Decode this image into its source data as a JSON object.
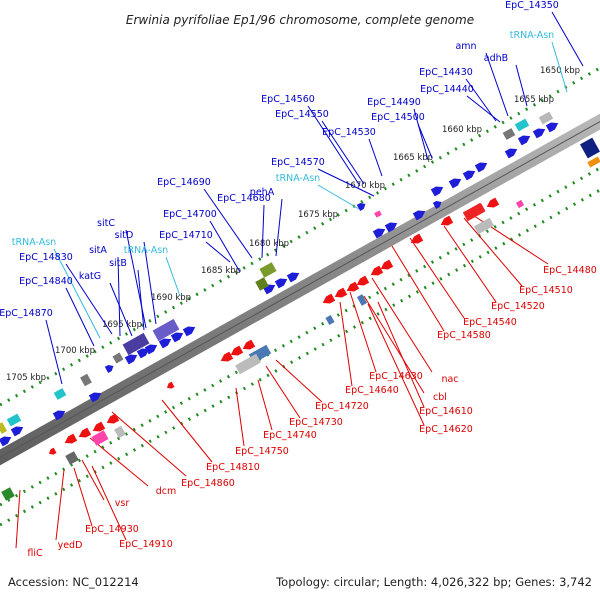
{
  "title": "Erwinia pyrifoliae Ep1/96 chromosome, complete genome",
  "accession": "Accession: NC_012214",
  "summary": "Topology: circular; Length: 4,026,322 bp; Genes: 3,742",
  "colors": {
    "forward_label": "#0000cc",
    "rna_label": "#33bbdd",
    "reverse_label": "#dd0000",
    "tick": "#228b22",
    "backbone": "#888888"
  },
  "kbp_ticks": [
    "1650 kbp",
    "1655 kbp",
    "1660 kbp",
    "1665 kbp",
    "1670 kbp",
    "1675 kbp",
    "1680 kbp",
    "1685 kbp",
    "1690 kbp",
    "1695 kbp",
    "1700 kbp",
    "1705 kbp"
  ],
  "upper_labels": [
    {
      "text": "EpC_14350",
      "kind": "forward"
    },
    {
      "text": "tRNA-Asn",
      "kind": "rna"
    },
    {
      "text": "amn",
      "kind": "forward"
    },
    {
      "text": "adhB",
      "kind": "forward"
    },
    {
      "text": "EpC_14430",
      "kind": "forward"
    },
    {
      "text": "EpC_14440",
      "kind": "forward"
    },
    {
      "text": "EpC_14490",
      "kind": "forward"
    },
    {
      "text": "EpC_14500",
      "kind": "forward"
    },
    {
      "text": "EpC_14560",
      "kind": "forward"
    },
    {
      "text": "EpC_14550",
      "kind": "forward"
    },
    {
      "text": "EpC_14530",
      "kind": "forward"
    },
    {
      "text": "EpC_14570",
      "kind": "forward"
    },
    {
      "text": "tRNA-Asn",
      "kind": "rna"
    },
    {
      "text": "pehA",
      "kind": "forward"
    },
    {
      "text": "EpC_14690",
      "kind": "forward"
    },
    {
      "text": "EpC_14680",
      "kind": "forward"
    },
    {
      "text": "EpC_14700",
      "kind": "forward"
    },
    {
      "text": "EpC_14710",
      "kind": "forward"
    },
    {
      "text": "sitC",
      "kind": "forward"
    },
    {
      "text": "sitD",
      "kind": "forward"
    },
    {
      "text": "tRNA-Asn",
      "kind": "rna"
    },
    {
      "text": "sitA",
      "kind": "forward"
    },
    {
      "text": "tRNA-Asn",
      "kind": "rna"
    },
    {
      "text": "sitB",
      "kind": "forward"
    },
    {
      "text": "EpC_14830",
      "kind": "forward"
    },
    {
      "text": "katG",
      "kind": "forward"
    },
    {
      "text": "EpC_14840",
      "kind": "forward"
    },
    {
      "text": "EpC_14870",
      "kind": "forward"
    }
  ],
  "lower_labels": [
    {
      "text": "EpC_14480"
    },
    {
      "text": "EpC_14510"
    },
    {
      "text": "EpC_14520"
    },
    {
      "text": "EpC_14540"
    },
    {
      "text": "EpC_14580"
    },
    {
      "text": "nac"
    },
    {
      "text": "EpC_14630"
    },
    {
      "text": "cbl"
    },
    {
      "text": "EpC_14640"
    },
    {
      "text": "EpC_14610"
    },
    {
      "text": "EpC_14720"
    },
    {
      "text": "EpC_14620"
    },
    {
      "text": "EpC_14730"
    },
    {
      "text": "EpC_14740"
    },
    {
      "text": "EpC_14750"
    },
    {
      "text": "EpC_14810"
    },
    {
      "text": "EpC_14860"
    },
    {
      "text": "dcm"
    },
    {
      "text": "vsr"
    },
    {
      "text": "EpC_14930"
    },
    {
      "text": "EpC_14910"
    },
    {
      "text": "yedD"
    },
    {
      "text": "fliC"
    }
  ]
}
